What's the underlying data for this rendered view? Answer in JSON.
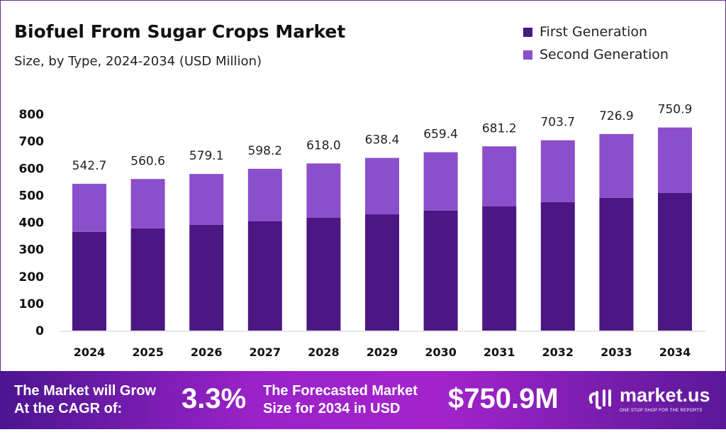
{
  "chart_data": {
    "type": "bar",
    "stacked": true,
    "title": "Biofuel From Sugar Crops Market",
    "subtitle": "Size, by Type, 2024-2034 (USD Million)",
    "categories": [
      "2024",
      "2025",
      "2026",
      "2027",
      "2028",
      "2029",
      "2030",
      "2031",
      "2032",
      "2033",
      "2034"
    ],
    "series": [
      {
        "name": "First Generation",
        "color": "#4b1782",
        "values": [
          365,
          378,
          391,
          404,
          417,
          430,
          444,
          459,
          475,
          491,
          509
        ]
      },
      {
        "name": "Second Generation",
        "color": "#8b4fcb",
        "values": [
          177.7,
          182.6,
          188.1,
          194.2,
          201.0,
          208.4,
          215.4,
          222.2,
          228.7,
          235.9,
          241.9
        ]
      }
    ],
    "totals": [
      "542.7",
      "560.6",
      "579.1",
      "598.2",
      "618.0",
      "638.4",
      "659.4",
      "681.2",
      "703.7",
      "726.9",
      "750.9"
    ],
    "ylim": [
      0,
      800
    ],
    "yticks": [
      "0",
      "100",
      "200",
      "300",
      "400",
      "500",
      "600",
      "700",
      "800"
    ],
    "grid": false,
    "legend": "top-right"
  },
  "footer": {
    "cagr_label_1": "The Market will Grow",
    "cagr_label_2": "At the CAGR of:",
    "cagr_value": "3.3%",
    "forecast_label_1": "The Forecasted Market",
    "forecast_label_2": "Size for 2034 in USD",
    "forecast_value": "$750.9M",
    "logo_text": "market.us",
    "logo_tagline": "ONE STOP SHOP FOR THE REPORTS"
  }
}
